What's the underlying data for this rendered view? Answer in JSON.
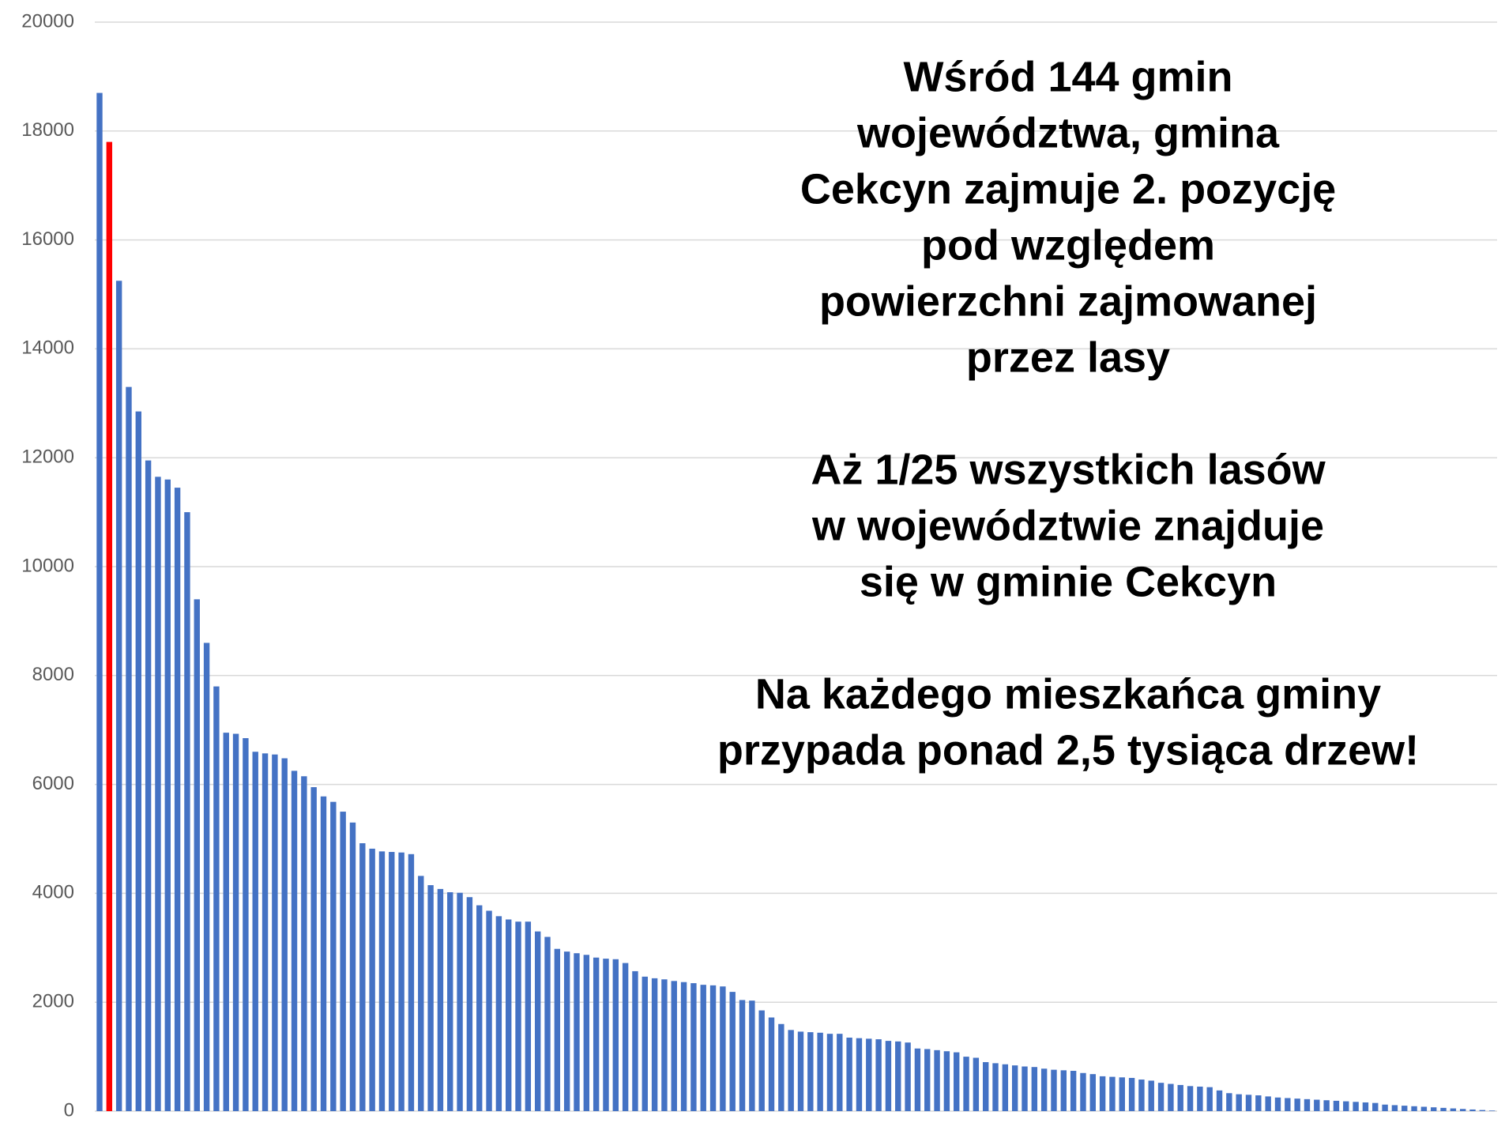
{
  "chart_data": {
    "type": "bar",
    "values": [
      18700,
      17800,
      15250,
      13300,
      12850,
      11950,
      11650,
      11600,
      11450,
      11000,
      9400,
      8600,
      7800,
      6950,
      6930,
      6850,
      6600,
      6570,
      6550,
      6480,
      6250,
      6150,
      5950,
      5780,
      5680,
      5500,
      5300,
      4920,
      4820,
      4770,
      4760,
      4750,
      4720,
      4320,
      4150,
      4080,
      4020,
      4010,
      3930,
      3780,
      3680,
      3580,
      3520,
      3480,
      3480,
      3300,
      3200,
      2980,
      2930,
      2900,
      2870,
      2820,
      2800,
      2790,
      2720,
      2570,
      2470,
      2440,
      2420,
      2390,
      2370,
      2350,
      2320,
      2310,
      2290,
      2190,
      2040,
      2030,
      1850,
      1720,
      1600,
      1490,
      1460,
      1450,
      1440,
      1420,
      1420,
      1350,
      1340,
      1330,
      1320,
      1290,
      1280,
      1260,
      1150,
      1140,
      1120,
      1100,
      1080,
      1000,
      980,
      900,
      880,
      860,
      840,
      820,
      810,
      780,
      760,
      750,
      740,
      700,
      680,
      640,
      630,
      620,
      610,
      580,
      560,
      520,
      500,
      480,
      460,
      450,
      440,
      380,
      330,
      310,
      300,
      290,
      270,
      250,
      240,
      230,
      220,
      210,
      200,
      190,
      180,
      170,
      160,
      150,
      120,
      110,
      100,
      90,
      80,
      70,
      60,
      50,
      40,
      30,
      20,
      10
    ],
    "color": "#4472c4",
    "highlight_index": 1,
    "highlight_color": "#ff0000",
    "ylim": [
      0,
      20000
    ],
    "yticks": [
      0,
      2000,
      4000,
      6000,
      8000,
      10000,
      12000,
      14000,
      16000,
      18000,
      20000
    ],
    "grid": true,
    "annotations": [
      [
        "Wśród 144 gmin",
        "województwa, gmina",
        "Cekcyn zajmuje 2. pozycję",
        "pod względem",
        "powierzchni zajmowanej",
        "przez lasy"
      ],
      [
        "Aż 1/25 wszystkich lasów",
        "w województwie znajduje",
        "się w gminie Cekcyn"
      ],
      [
        "Na każdego mieszkańca gminy",
        "przypada ponad 2,5 tysiąca drzew!"
      ]
    ]
  }
}
